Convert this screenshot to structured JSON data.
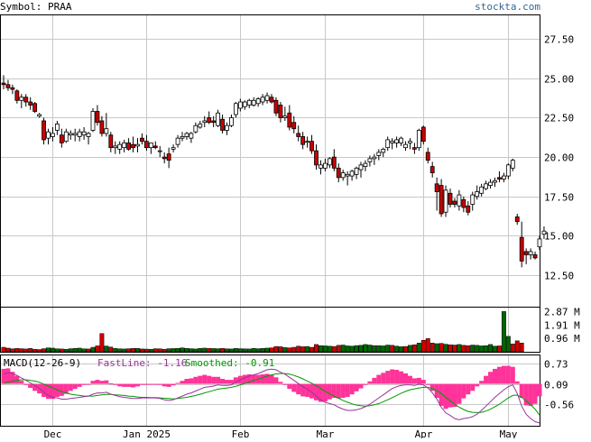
{
  "header": {
    "symbol_label": "Symbol: PRAA",
    "brand": "stockta.com"
  },
  "colors": {
    "up_candle": "#ffffff",
    "down_candle": "#cc0000",
    "candle_outline": "#000000",
    "volume_up": "#006600",
    "volume_down": "#cc0000",
    "macd_hist": "#ff3399",
    "fastline": "#993399",
    "smoothed": "#009900",
    "grid": "#c8c8c8",
    "brand_text": "#336699"
  },
  "chart_data": [
    {
      "type": "candlestick",
      "panel": "price",
      "ylim": [
        10.5,
        29
      ],
      "y_ticks": [
        "27.50",
        "25.00",
        "22.50",
        "20.00",
        "17.50",
        "15.00",
        "12.50"
      ],
      "y_tick_values": [
        27.5,
        25.0,
        22.5,
        20.0,
        17.5,
        15.0,
        12.5
      ],
      "x_ticks": [
        "Dec",
        "Jan 2025",
        "Feb",
        "Mar",
        "Apr",
        "May"
      ],
      "x_tick_index": [
        11,
        32,
        53,
        72,
        94,
        113
      ],
      "ohlc": [
        [
          24.7,
          25.2,
          24.3,
          24.6
        ],
        [
          24.6,
          24.9,
          24.2,
          24.4
        ],
        [
          24.4,
          24.6,
          24.0,
          24.3
        ],
        [
          24.2,
          24.3,
          23.4,
          23.6
        ],
        [
          23.6,
          24.0,
          23.1,
          23.8
        ],
        [
          23.8,
          24.0,
          23.2,
          23.5
        ],
        [
          23.5,
          23.8,
          23.0,
          23.3
        ],
        [
          23.4,
          23.5,
          22.8,
          22.9
        ],
        [
          22.6,
          22.8,
          22.5,
          22.7
        ],
        [
          22.3,
          22.5,
          20.8,
          21.1
        ],
        [
          21.2,
          21.8,
          20.8,
          21.6
        ],
        [
          21.3,
          21.9,
          21.0,
          21.5
        ],
        [
          21.7,
          22.3,
          21.4,
          22.1
        ],
        [
          21.4,
          21.8,
          20.6,
          20.9
        ],
        [
          21.0,
          21.8,
          20.9,
          21.6
        ],
        [
          21.4,
          21.7,
          21.1,
          21.5
        ],
        [
          21.4,
          21.8,
          21.0,
          21.5
        ],
        [
          21.3,
          21.8,
          21.0,
          21.6
        ],
        [
          21.4,
          21.9,
          21.1,
          21.6
        ],
        [
          21.3,
          21.6,
          20.8,
          21.5
        ],
        [
          21.7,
          23.1,
          21.6,
          22.9
        ],
        [
          22.9,
          23.3,
          22.0,
          22.2
        ],
        [
          22.3,
          22.6,
          21.3,
          21.5
        ],
        [
          21.5,
          22.8,
          21.3,
          21.8
        ],
        [
          21.4,
          21.6,
          20.3,
          20.6
        ],
        [
          20.6,
          21.0,
          20.2,
          20.7
        ],
        [
          20.5,
          21.0,
          20.2,
          20.8
        ],
        [
          20.6,
          21.1,
          20.3,
          20.9
        ],
        [
          20.9,
          21.2,
          20.4,
          20.5
        ],
        [
          20.8,
          21.3,
          20.3,
          20.6
        ],
        [
          20.7,
          21.2,
          20.3,
          20.8
        ],
        [
          21.2,
          21.5,
          20.8,
          21.0
        ],
        [
          21.0,
          21.4,
          20.4,
          20.6
        ],
        [
          20.6,
          20.9,
          20.2,
          20.9
        ],
        [
          20.7,
          21.0,
          20.5,
          20.6
        ],
        [
          20.4,
          20.7,
          20.0,
          20.4
        ],
        [
          20.0,
          20.3,
          19.6,
          19.9
        ],
        [
          20.2,
          20.6,
          19.3,
          19.8
        ],
        [
          20.5,
          20.8,
          20.3,
          20.6
        ],
        [
          20.8,
          21.4,
          20.6,
          21.2
        ],
        [
          21.2,
          21.6,
          21.0,
          21.3
        ],
        [
          21.3,
          21.6,
          21.1,
          21.5
        ],
        [
          21.2,
          21.6,
          20.9,
          21.5
        ],
        [
          21.6,
          22.2,
          21.5,
          22.0
        ],
        [
          21.9,
          22.3,
          21.8,
          22.1
        ],
        [
          22.2,
          22.6,
          21.9,
          22.3
        ],
        [
          22.5,
          22.9,
          22.1,
          22.2
        ],
        [
          22.3,
          22.6,
          21.9,
          22.2
        ],
        [
          22.0,
          23.0,
          21.9,
          22.8
        ],
        [
          22.4,
          22.7,
          21.5,
          21.7
        ],
        [
          21.7,
          22.2,
          21.4,
          22.0
        ],
        [
          22.0,
          22.7,
          21.9,
          22.5
        ],
        [
          22.7,
          23.5,
          22.5,
          23.4
        ],
        [
          23.1,
          23.7,
          22.9,
          23.5
        ],
        [
          23.2,
          23.6,
          23.0,
          23.5
        ],
        [
          23.3,
          23.7,
          23.1,
          23.6
        ],
        [
          23.3,
          23.8,
          23.2,
          23.6
        ],
        [
          23.4,
          23.8,
          23.2,
          23.7
        ],
        [
          23.5,
          24.0,
          23.3,
          23.8
        ],
        [
          23.6,
          24.1,
          23.4,
          23.9
        ],
        [
          23.8,
          24.0,
          23.4,
          23.5
        ],
        [
          23.6,
          23.8,
          22.6,
          22.8
        ],
        [
          23.3,
          23.5,
          22.2,
          22.5
        ],
        [
          22.5,
          23.2,
          22.3,
          22.6
        ],
        [
          22.8,
          23.3,
          21.7,
          21.9
        ],
        [
          22.2,
          22.6,
          21.5,
          21.8
        ],
        [
          21.5,
          22.0,
          21.0,
          21.3
        ],
        [
          21.3,
          21.6,
          20.5,
          20.8
        ],
        [
          21.0,
          21.3,
          20.6,
          21.0
        ],
        [
          21.0,
          21.4,
          20.2,
          20.4
        ],
        [
          20.4,
          20.8,
          19.2,
          19.5
        ],
        [
          19.3,
          19.8,
          18.9,
          19.5
        ],
        [
          19.3,
          19.9,
          19.1,
          19.6
        ],
        [
          19.5,
          20.0,
          19.3,
          19.9
        ],
        [
          20.0,
          20.5,
          19.1,
          19.3
        ],
        [
          19.3,
          19.6,
          18.4,
          18.7
        ],
        [
          18.7,
          19.2,
          18.5,
          19.0
        ],
        [
          18.8,
          19.1,
          18.2,
          18.9
        ],
        [
          18.8,
          19.2,
          18.5,
          19.1
        ],
        [
          18.9,
          19.4,
          18.6,
          19.3
        ],
        [
          19.2,
          19.7,
          18.7,
          19.5
        ],
        [
          19.4,
          19.8,
          19.1,
          19.6
        ],
        [
          19.7,
          20.1,
          19.4,
          19.9
        ],
        [
          19.9,
          20.2,
          19.5,
          20.0
        ],
        [
          20.1,
          20.5,
          19.8,
          20.3
        ],
        [
          20.3,
          20.6,
          20.0,
          20.5
        ],
        [
          20.6,
          21.3,
          20.4,
          21.1
        ],
        [
          20.9,
          21.2,
          20.5,
          21.0
        ],
        [
          20.9,
          21.3,
          20.6,
          21.1
        ],
        [
          20.9,
          21.3,
          20.7,
          21.2
        ],
        [
          20.6,
          21.0,
          20.4,
          20.8
        ],
        [
          20.9,
          21.2,
          20.5,
          21.0
        ],
        [
          20.6,
          20.9,
          20.2,
          20.5
        ],
        [
          20.6,
          21.8,
          20.4,
          21.7
        ],
        [
          21.9,
          22.0,
          20.8,
          21.0
        ],
        [
          20.3,
          20.6,
          19.6,
          19.8
        ],
        [
          19.4,
          19.7,
          18.7,
          19.0
        ],
        [
          18.3,
          18.7,
          16.6,
          17.8
        ],
        [
          18.2,
          18.6,
          16.2,
          16.4
        ],
        [
          16.5,
          18.2,
          16.2,
          17.9
        ],
        [
          17.7,
          18.0,
          16.8,
          17.0
        ],
        [
          17.2,
          17.4,
          16.8,
          17.0
        ],
        [
          16.9,
          17.9,
          16.6,
          17.6
        ],
        [
          17.3,
          17.5,
          16.5,
          16.8
        ],
        [
          16.9,
          17.2,
          16.3,
          16.5
        ],
        [
          17.0,
          17.8,
          16.6,
          17.6
        ],
        [
          17.5,
          18.2,
          17.3,
          17.8
        ],
        [
          17.7,
          18.3,
          17.5,
          18.1
        ],
        [
          18.0,
          18.5,
          17.9,
          18.3
        ],
        [
          18.2,
          18.6,
          18.0,
          18.4
        ],
        [
          18.4,
          18.7,
          18.1,
          18.5
        ],
        [
          18.7,
          19.1,
          18.4,
          18.6
        ],
        [
          18.6,
          19.0,
          18.4,
          18.8
        ],
        [
          18.8,
          19.6,
          18.6,
          19.5
        ],
        [
          19.3,
          19.9,
          19.1,
          19.8
        ],
        [
          16.2,
          16.4,
          15.7,
          15.9
        ],
        [
          14.9,
          15.9,
          13.0,
          13.4
        ],
        [
          14.0,
          14.2,
          13.2,
          13.8
        ],
        [
          13.8,
          14.2,
          13.5,
          14.0
        ],
        [
          13.8,
          14.0,
          13.5,
          13.6
        ],
        [
          14.3,
          15.0,
          14.1,
          14.8
        ],
        [
          15.1,
          15.6,
          14.8,
          15.3
        ]
      ]
    },
    {
      "type": "bar",
      "panel": "volume",
      "y_ticks": [
        "2.87 M",
        "1.91 M",
        "0.96 M"
      ],
      "y_tick_values": [
        2.87,
        1.91,
        0.96
      ],
      "ylim": [
        0,
        3.15
      ],
      "values": [
        0.32,
        0.26,
        0.21,
        0.24,
        0.22,
        0.2,
        0.24,
        0.18,
        0.16,
        0.22,
        0.28,
        0.26,
        0.21,
        0.2,
        0.18,
        0.22,
        0.24,
        0.26,
        0.21,
        0.2,
        0.32,
        0.42,
        1.3,
        0.41,
        0.34,
        0.24,
        0.21,
        0.2,
        0.22,
        0.24,
        0.24,
        0.2,
        0.19,
        0.18,
        0.22,
        0.21,
        0.18,
        0.22,
        0.23,
        0.24,
        0.28,
        0.24,
        0.22,
        0.2,
        0.24,
        0.26,
        0.24,
        0.23,
        0.22,
        0.24,
        0.21,
        0.2,
        0.24,
        0.22,
        0.21,
        0.2,
        0.24,
        0.22,
        0.24,
        0.26,
        0.28,
        0.38,
        0.36,
        0.3,
        0.28,
        0.32,
        0.4,
        0.36,
        0.38,
        0.32,
        0.52,
        0.44,
        0.42,
        0.4,
        0.38,
        0.46,
        0.48,
        0.42,
        0.4,
        0.44,
        0.46,
        0.52,
        0.48,
        0.44,
        0.44,
        0.42,
        0.48,
        0.46,
        0.4,
        0.36,
        0.38,
        0.46,
        0.5,
        0.62,
        0.82,
        0.94,
        0.62,
        0.58,
        0.6,
        0.54,
        0.5,
        0.48,
        0.52,
        0.46,
        0.44,
        0.48,
        0.46,
        0.42,
        0.44,
        0.52,
        0.4,
        0.42,
        2.87,
        1.1,
        0.56,
        0.78,
        0.62
      ],
      "up": [
        0,
        0,
        0,
        0,
        0,
        0,
        0,
        0,
        0,
        0,
        1,
        1,
        1,
        0,
        1,
        1,
        1,
        1,
        1,
        0,
        1,
        0,
        0,
        1,
        0,
        1,
        1,
        1,
        0,
        0,
        1,
        0,
        0,
        1,
        0,
        0,
        0,
        1,
        1,
        1,
        1,
        1,
        1,
        1,
        1,
        1,
        0,
        1,
        1,
        0,
        1,
        1,
        1,
        1,
        1,
        1,
        1,
        1,
        1,
        1,
        0,
        0,
        0,
        1,
        0,
        0,
        0,
        0,
        1,
        0,
        0,
        1,
        1,
        1,
        0,
        0,
        1,
        1,
        1,
        1,
        1,
        1,
        1,
        1,
        1,
        1,
        1,
        0,
        1,
        1,
        0,
        1,
        0,
        1,
        0,
        0,
        0,
        1,
        0,
        1,
        0,
        0,
        1,
        0,
        0,
        1,
        1,
        1,
        1,
        1,
        1,
        0,
        1,
        1,
        0,
        0,
        0,
        1,
        0,
        1,
        1
      ]
    },
    {
      "type": "line",
      "panel": "macd",
      "title": "MACD(12-26-9)",
      "series": [
        {
          "name": "FastLine",
          "value": "-1.16",
          "values": [
            0.4,
            0.45,
            0.42,
            0.36,
            0.28,
            0.2,
            0.12,
            0.04,
            -0.05,
            -0.18,
            -0.28,
            -0.34,
            -0.36,
            -0.4,
            -0.4,
            -0.38,
            -0.36,
            -0.34,
            -0.32,
            -0.3,
            -0.24,
            -0.2,
            -0.2,
            -0.18,
            -0.24,
            -0.28,
            -0.32,
            -0.34,
            -0.36,
            -0.38,
            -0.38,
            -0.36,
            -0.36,
            -0.36,
            -0.36,
            -0.38,
            -0.42,
            -0.44,
            -0.42,
            -0.36,
            -0.3,
            -0.24,
            -0.2,
            -0.14,
            -0.08,
            -0.02,
            0.0,
            0.02,
            0.06,
            0.04,
            0.04,
            0.06,
            0.14,
            0.22,
            0.28,
            0.34,
            0.38,
            0.42,
            0.48,
            0.54,
            0.56,
            0.54,
            0.46,
            0.4,
            0.3,
            0.2,
            0.1,
            0.0,
            -0.08,
            -0.18,
            -0.3,
            -0.42,
            -0.5,
            -0.54,
            -0.58,
            -0.66,
            -0.72,
            -0.76,
            -0.76,
            -0.74,
            -0.7,
            -0.64,
            -0.56,
            -0.46,
            -0.36,
            -0.26,
            -0.16,
            -0.06,
            0.0,
            0.04,
            0.06,
            0.06,
            0.04,
            0.08,
            0.06,
            -0.04,
            -0.2,
            -0.4,
            -0.66,
            -0.84,
            -0.92,
            -1.02,
            -1.06,
            -1.02,
            -1.0,
            -0.96,
            -0.88,
            -0.76,
            -0.62,
            -0.48,
            -0.34,
            -0.22,
            -0.1,
            0.0,
            0.06,
            -0.22,
            -0.62,
            -0.88,
            -1.02,
            -1.12,
            -1.16
          ]
        },
        {
          "name": "Smoothed",
          "value": "-0.91",
          "values": [
            0.1,
            0.14,
            0.18,
            0.2,
            0.22,
            0.22,
            0.2,
            0.18,
            0.14,
            0.08,
            0.02,
            -0.04,
            -0.1,
            -0.16,
            -0.2,
            -0.24,
            -0.26,
            -0.28,
            -0.3,
            -0.3,
            -0.3,
            -0.28,
            -0.26,
            -0.25,
            -0.25,
            -0.26,
            -0.27,
            -0.28,
            -0.3,
            -0.31,
            -0.33,
            -0.34,
            -0.34,
            -0.35,
            -0.35,
            -0.36,
            -0.37,
            -0.38,
            -0.39,
            -0.38,
            -0.36,
            -0.34,
            -0.31,
            -0.28,
            -0.24,
            -0.2,
            -0.16,
            -0.12,
            -0.08,
            -0.06,
            -0.04,
            -0.02,
            0.01,
            0.06,
            0.1,
            0.15,
            0.2,
            0.24,
            0.29,
            0.34,
            0.38,
            0.41,
            0.42,
            0.42,
            0.4,
            0.36,
            0.31,
            0.25,
            0.18,
            0.11,
            0.03,
            -0.06,
            -0.15,
            -0.23,
            -0.3,
            -0.37,
            -0.44,
            -0.5,
            -0.55,
            -0.59,
            -0.61,
            -0.62,
            -0.61,
            -0.58,
            -0.54,
            -0.48,
            -0.42,
            -0.35,
            -0.28,
            -0.21,
            -0.15,
            -0.1,
            -0.07,
            -0.04,
            -0.02,
            -0.02,
            -0.06,
            -0.12,
            -0.22,
            -0.34,
            -0.45,
            -0.56,
            -0.66,
            -0.73,
            -0.79,
            -0.82,
            -0.83,
            -0.82,
            -0.78,
            -0.72,
            -0.64,
            -0.56,
            -0.46,
            -0.36,
            -0.28,
            -0.27,
            -0.34,
            -0.45,
            -0.58,
            -0.72,
            -0.91
          ]
        }
      ],
      "y_ticks": [
        "0.73",
        "0.09",
        "-0.56"
      ],
      "y_tick_values": [
        0.73,
        0.09,
        -0.56
      ],
      "ylim": [
        -1.25,
        1.0
      ],
      "histogram_zero": 0.09
    }
  ]
}
